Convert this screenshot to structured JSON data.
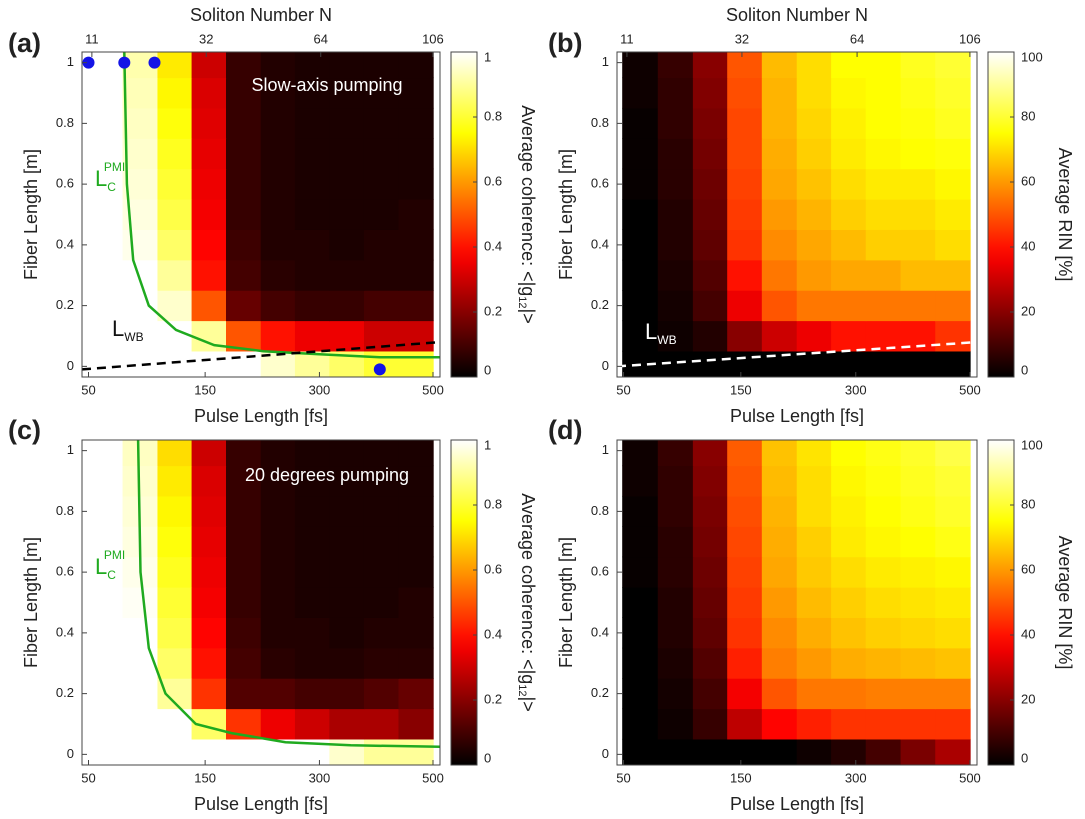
{
  "chart_data": [
    {
      "type": "heatmap",
      "panel_label": "(a)",
      "annotation": "Slow-axis pumping",
      "xlabel": "Pulse Length [fs]",
      "ylabel": "Fiber Length [m]",
      "x2label": "Soliton Number N",
      "xscale": "sqrt",
      "xlim": [
        46,
        514
      ],
      "xticks": [
        50,
        150,
        300,
        500
      ],
      "x2lim": [
        9.7,
        109
      ],
      "x2ticks": [
        11,
        32,
        64,
        106
      ],
      "ylim": [
        -0.035,
        1.035
      ],
      "yticks": [
        0,
        0.2,
        0.4,
        0.6,
        0.8,
        1
      ],
      "colormap": "hot",
      "zlim": [
        0,
        1
      ],
      "zticks": [
        0,
        0.2,
        0.4,
        0.6,
        0.8,
        1
      ],
      "colorbar_label": [
        "Average coherence: <|g",
        "12",
        "|>"
      ],
      "x": [
        61,
        88,
        119,
        154,
        195,
        240,
        289,
        344,
        403,
        467
      ],
      "y": [
        0,
        0.1,
        0.2,
        0.3,
        0.4,
        0.5,
        0.6,
        0.7,
        0.8,
        0.9,
        1
      ],
      "z": [
        [
          1,
          1,
          1,
          1,
          1,
          0.95,
          0.9,
          0.85,
          0.8,
          0.8
        ],
        [
          1,
          1,
          1,
          0.9,
          0.5,
          0.4,
          0.35,
          0.35,
          0.3,
          0.3
        ],
        [
          1,
          1,
          0.95,
          0.5,
          0.15,
          0.1,
          0.08,
          0.08,
          0.1,
          0.1
        ],
        [
          1,
          1,
          0.9,
          0.4,
          0.1,
          0.06,
          0.05,
          0.05,
          0.05,
          0.05
        ],
        [
          1,
          0.98,
          0.85,
          0.38,
          0.09,
          0.05,
          0.05,
          0.04,
          0.05,
          0.05
        ],
        [
          1,
          0.97,
          0.82,
          0.36,
          0.08,
          0.05,
          0.04,
          0.04,
          0.04,
          0.05
        ],
        [
          1,
          0.96,
          0.8,
          0.35,
          0.08,
          0.05,
          0.04,
          0.04,
          0.04,
          0.04
        ],
        [
          1,
          0.95,
          0.78,
          0.34,
          0.08,
          0.05,
          0.04,
          0.04,
          0.04,
          0.04
        ],
        [
          1,
          0.94,
          0.76,
          0.33,
          0.08,
          0.05,
          0.04,
          0.04,
          0.04,
          0.04
        ],
        [
          1,
          0.93,
          0.74,
          0.32,
          0.08,
          0.05,
          0.04,
          0.04,
          0.04,
          0.04
        ],
        [
          1,
          0.92,
          0.72,
          0.3,
          0.08,
          0.05,
          0.04,
          0.04,
          0.04,
          0.04
        ]
      ],
      "lines": [
        {
          "label": [
            "L",
            "C",
            "PMI"
          ],
          "color": "#1faa1f",
          "dash": false,
          "x": [
            75,
            77,
            82,
            95,
            120,
            160,
            220,
            300,
            400,
            514
          ],
          "y": [
            1.035,
            0.6,
            0.35,
            0.2,
            0.12,
            0.07,
            0.05,
            0.04,
            0.03,
            0.03
          ]
        },
        {
          "label": [
            "L",
            "WB"
          ],
          "color": "#000000",
          "dash": true,
          "x": [
            46,
            514
          ],
          "y": [
            -0.01,
            0.08
          ]
        }
      ],
      "points": {
        "color": "#1414e6",
        "x": [
          50,
          75,
          100,
          400
        ],
        "y": [
          1,
          1,
          1,
          -0.01
        ]
      }
    },
    {
      "type": "heatmap",
      "panel_label": "(b)",
      "xlabel": "Pulse Length [fs]",
      "ylabel": "Fiber Length [m]",
      "x2label": "Soliton Number N",
      "xscale": "sqrt",
      "xlim": [
        46,
        514
      ],
      "xticks": [
        50,
        150,
        300,
        500
      ],
      "x2lim": [
        9.7,
        109
      ],
      "x2ticks": [
        11,
        32,
        64,
        106
      ],
      "ylim": [
        -0.035,
        1.035
      ],
      "yticks": [
        0,
        0.2,
        0.4,
        0.6,
        0.8,
        1
      ],
      "colormap": "hot",
      "zlim": [
        0,
        100
      ],
      "zticks": [
        0,
        20,
        40,
        60,
        80,
        100
      ],
      "colorbar_label": [
        "Average RIN [%]"
      ],
      "x": [
        61,
        88,
        119,
        154,
        195,
        240,
        289,
        344,
        403,
        467
      ],
      "y": [
        0,
        0.1,
        0.2,
        0.3,
        0.4,
        0.5,
        0.6,
        0.7,
        0.8,
        0.9,
        1
      ],
      "z": [
        [
          0,
          0,
          0,
          0,
          0,
          0,
          0,
          0,
          0,
          0
        ],
        [
          0,
          2,
          5,
          20,
          30,
          35,
          40,
          40,
          40,
          45
        ],
        [
          0,
          3,
          10,
          35,
          50,
          55,
          55,
          55,
          55,
          55
        ],
        [
          0,
          4,
          12,
          40,
          55,
          60,
          62,
          62,
          65,
          65
        ],
        [
          0,
          5,
          14,
          45,
          58,
          62,
          65,
          68,
          68,
          70
        ],
        [
          0,
          5,
          15,
          46,
          60,
          64,
          68,
          70,
          70,
          72
        ],
        [
          1,
          6,
          16,
          47,
          62,
          66,
          70,
          72,
          72,
          74
        ],
        [
          1,
          6,
          17,
          48,
          63,
          68,
          72,
          74,
          75,
          76
        ],
        [
          1,
          7,
          18,
          48,
          64,
          69,
          73,
          75,
          76,
          78
        ],
        [
          2,
          7,
          19,
          49,
          64,
          70,
          74,
          75,
          77,
          79
        ],
        [
          2,
          8,
          20,
          50,
          65,
          70,
          75,
          75,
          78,
          80
        ]
      ],
      "lines": [
        {
          "label": [
            "L",
            "WB"
          ],
          "color": "#ffffff",
          "dash": true,
          "x": [
            46,
            514
          ],
          "y": [
            0,
            0.08
          ]
        }
      ]
    },
    {
      "type": "heatmap",
      "panel_label": "(c)",
      "annotation": "20 degrees pumping",
      "xlabel": "Pulse Length [fs]",
      "ylabel": "Fiber Length [m]",
      "xscale": "sqrt",
      "xlim": [
        46,
        514
      ],
      "xticks": [
        50,
        150,
        300,
        500
      ],
      "ylim": [
        -0.035,
        1.035
      ],
      "yticks": [
        0,
        0.2,
        0.4,
        0.6,
        0.8,
        1
      ],
      "colormap": "hot",
      "zlim": [
        0,
        1
      ],
      "zticks": [
        0,
        0.2,
        0.4,
        0.6,
        0.8,
        1
      ],
      "colorbar_label": [
        "Average coherence: <|g",
        "12",
        "|>"
      ],
      "x": [
        61,
        88,
        119,
        154,
        195,
        240,
        289,
        344,
        403,
        467
      ],
      "y": [
        0,
        0.1,
        0.2,
        0.3,
        0.4,
        0.5,
        0.6,
        0.7,
        0.8,
        0.9,
        1
      ],
      "z": [
        [
          1,
          1,
          1,
          1,
          1,
          1,
          1,
          0.95,
          0.9,
          0.9
        ],
        [
          1,
          1,
          1,
          0.85,
          0.45,
          0.35,
          0.3,
          0.25,
          0.25,
          0.2
        ],
        [
          1,
          1,
          0.9,
          0.45,
          0.12,
          0.12,
          0.1,
          0.1,
          0.12,
          0.15
        ],
        [
          1,
          1,
          0.85,
          0.4,
          0.1,
          0.06,
          0.05,
          0.05,
          0.06,
          0.06
        ],
        [
          1,
          1,
          0.82,
          0.38,
          0.09,
          0.05,
          0.05,
          0.04,
          0.05,
          0.05
        ],
        [
          1,
          0.99,
          0.8,
          0.36,
          0.08,
          0.05,
          0.04,
          0.04,
          0.04,
          0.05
        ],
        [
          1,
          0.98,
          0.78,
          0.35,
          0.08,
          0.05,
          0.04,
          0.04,
          0.04,
          0.04
        ],
        [
          1,
          0.97,
          0.76,
          0.34,
          0.08,
          0.05,
          0.04,
          0.04,
          0.04,
          0.04
        ],
        [
          1,
          0.96,
          0.74,
          0.33,
          0.08,
          0.05,
          0.04,
          0.04,
          0.04,
          0.04
        ],
        [
          1,
          0.95,
          0.72,
          0.32,
          0.08,
          0.05,
          0.04,
          0.04,
          0.04,
          0.04
        ],
        [
          1,
          0.94,
          0.7,
          0.3,
          0.08,
          0.05,
          0.04,
          0.04,
          0.04,
          0.04
        ]
      ],
      "lines": [
        {
          "label": [
            "L",
            "C",
            "PMI"
          ],
          "color": "#1faa1f",
          "dash": false,
          "x": [
            86,
            88,
            95,
            110,
            140,
            180,
            250,
            350,
            514
          ],
          "y": [
            1.035,
            0.6,
            0.35,
            0.2,
            0.1,
            0.07,
            0.04,
            0.03,
            0.025
          ]
        }
      ]
    },
    {
      "type": "heatmap",
      "panel_label": "(d)",
      "xlabel": "Pulse Length [fs]",
      "ylabel": "Fiber Length [m]",
      "xscale": "sqrt",
      "xlim": [
        46,
        514
      ],
      "xticks": [
        50,
        150,
        300,
        500
      ],
      "ylim": [
        -0.035,
        1.035
      ],
      "yticks": [
        0,
        0.2,
        0.4,
        0.6,
        0.8,
        1
      ],
      "colormap": "hot",
      "zlim": [
        0,
        100
      ],
      "zticks": [
        0,
        20,
        40,
        60,
        80,
        100
      ],
      "colorbar_label": [
        "Average RIN [%]"
      ],
      "x": [
        61,
        88,
        119,
        154,
        195,
        240,
        289,
        344,
        403,
        467
      ],
      "y": [
        0,
        0.1,
        0.2,
        0.3,
        0.4,
        0.5,
        0.6,
        0.7,
        0.8,
        0.9,
        1
      ],
      "z": [
        [
          0,
          0,
          0,
          0,
          0,
          2,
          5,
          10,
          18,
          25
        ],
        [
          0,
          2,
          8,
          28,
          38,
          42,
          45,
          45,
          45,
          45
        ],
        [
          0,
          3,
          10,
          36,
          50,
          55,
          55,
          56,
          56,
          56
        ],
        [
          0,
          4,
          12,
          42,
          56,
          60,
          63,
          64,
          65,
          66
        ],
        [
          0,
          5,
          14,
          45,
          58,
          63,
          66,
          68,
          69,
          70
        ],
        [
          0,
          5,
          15,
          46,
          60,
          65,
          68,
          70,
          71,
          72
        ],
        [
          1,
          6,
          16,
          47,
          62,
          67,
          70,
          72,
          73,
          74
        ],
        [
          1,
          6,
          17,
          48,
          63,
          68,
          72,
          74,
          75,
          77
        ],
        [
          1,
          7,
          18,
          49,
          64,
          70,
          73,
          75,
          77,
          79
        ],
        [
          2,
          7,
          19,
          50,
          65,
          70,
          74,
          76,
          78,
          80
        ],
        [
          2,
          8,
          20,
          51,
          66,
          71,
          75,
          77,
          79,
          82
        ]
      ]
    }
  ]
}
